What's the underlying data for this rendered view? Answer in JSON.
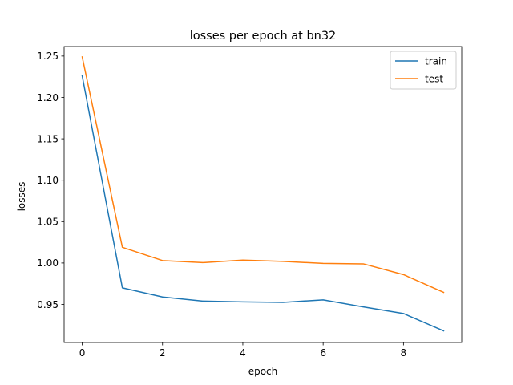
{
  "chart_data": {
    "type": "line",
    "title": "losses per epoch at bn32",
    "xlabel": "epoch",
    "ylabel": "losses",
    "x": [
      0,
      1,
      2,
      3,
      4,
      5,
      6,
      7,
      8,
      9
    ],
    "xlim": [
      -0.45,
      9.45
    ],
    "ylim": [
      0.904,
      1.2615
    ],
    "xticks": [
      0,
      2,
      4,
      6,
      8
    ],
    "yticks": [
      0.95,
      1.0,
      1.05,
      1.1,
      1.15,
      1.2,
      1.25
    ],
    "ytick_labels": [
      "0.95",
      "1.00",
      "1.05",
      "1.10",
      "1.15",
      "1.20",
      "1.25"
    ],
    "legend_position": "top-right",
    "grid": false,
    "series": [
      {
        "name": "train",
        "color": "#1f77b4",
        "values": [
          1.226,
          0.97,
          0.959,
          0.954,
          0.953,
          0.9525,
          0.9555,
          0.947,
          0.939,
          0.918
        ]
      },
      {
        "name": "test",
        "color": "#ff7f0e",
        "values": [
          1.249,
          1.019,
          1.003,
          1.0005,
          1.0035,
          1.002,
          0.9995,
          0.999,
          0.986,
          0.9645
        ]
      }
    ]
  }
}
